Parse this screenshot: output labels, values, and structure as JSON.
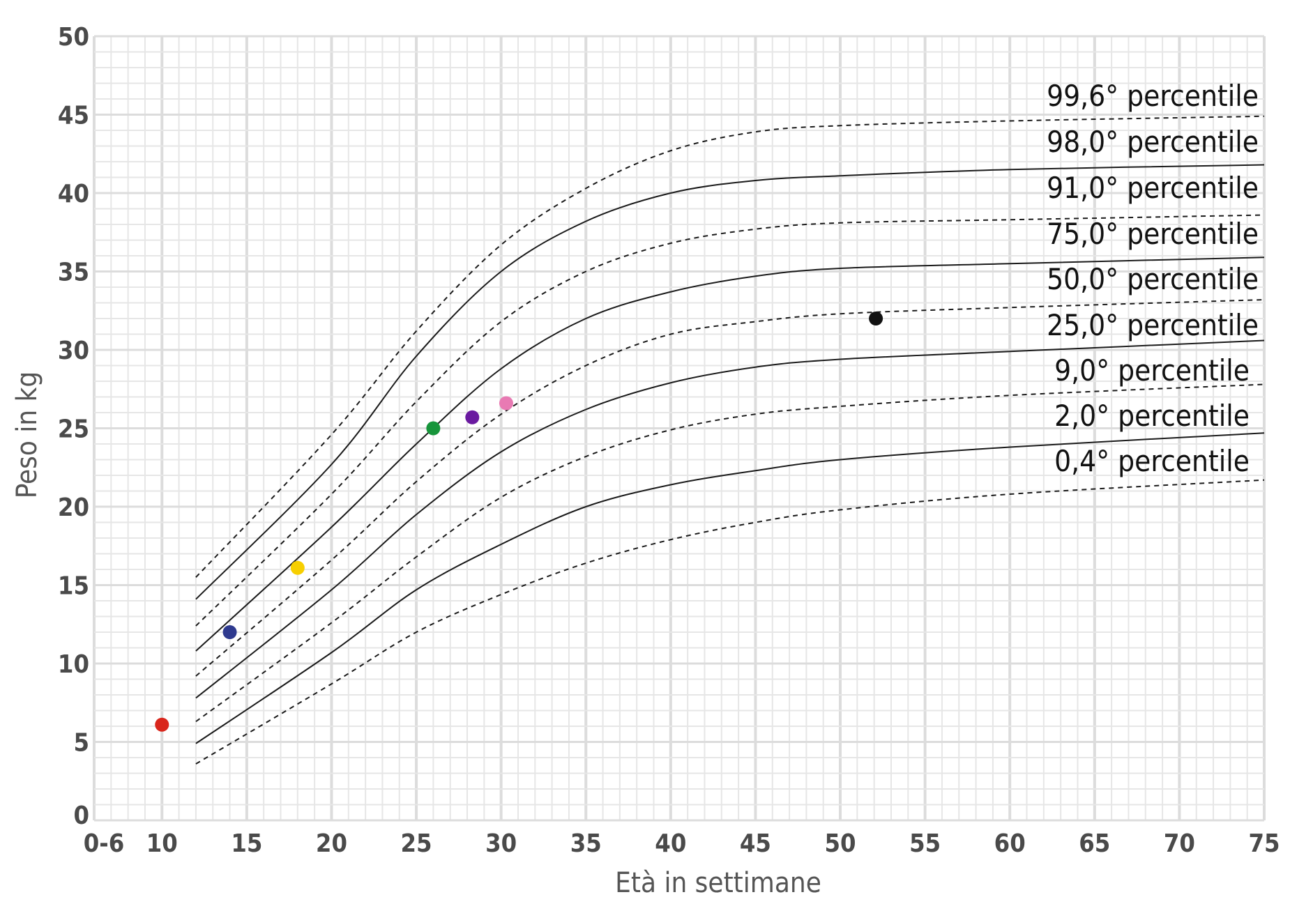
{
  "chart_data": {
    "type": "line",
    "title": "",
    "xlabel": "Età in settimane",
    "ylabel": "Peso in kg",
    "xlim": [
      6,
      75
    ],
    "ylim": [
      0,
      50
    ],
    "grid": true,
    "x_ticks": [
      {
        "value": 6,
        "label": "0-6"
      },
      {
        "value": 10,
        "label": "10"
      },
      {
        "value": 15,
        "label": "15"
      },
      {
        "value": 20,
        "label": "20"
      },
      {
        "value": 25,
        "label": "25"
      },
      {
        "value": 30,
        "label": "30"
      },
      {
        "value": 35,
        "label": "35"
      },
      {
        "value": 40,
        "label": "40"
      },
      {
        "value": 45,
        "label": "45"
      },
      {
        "value": 50,
        "label": "50"
      },
      {
        "value": 55,
        "label": "55"
      },
      {
        "value": 60,
        "label": "60"
      },
      {
        "value": 65,
        "label": "65"
      },
      {
        "value": 70,
        "label": "70"
      },
      {
        "value": 75,
        "label": "75"
      }
    ],
    "y_ticks": [
      "0",
      "5",
      "10",
      "15",
      "20",
      "25",
      "30",
      "35",
      "40",
      "45",
      "50"
    ],
    "x": [
      12,
      20,
      25,
      30,
      35,
      40,
      45,
      50,
      60,
      75
    ],
    "series": [
      {
        "name": "99,6° percentile",
        "style": "dashed",
        "values": [
          15.5,
          24.6,
          31.2,
          36.7,
          40.3,
          42.7,
          43.9,
          44.3,
          44.6,
          44.9
        ]
      },
      {
        "name": "98,0° percentile",
        "style": "solid",
        "values": [
          14.1,
          22.7,
          29.6,
          35.0,
          38.2,
          40.0,
          40.8,
          41.1,
          41.5,
          41.8
        ]
      },
      {
        "name": "91,0° percentile",
        "style": "dashed",
        "values": [
          12.4,
          20.8,
          26.7,
          31.8,
          35.0,
          36.8,
          37.7,
          38.1,
          38.3,
          38.6
        ]
      },
      {
        "name": "75,0° percentile",
        "style": "solid",
        "values": [
          10.8,
          18.7,
          24.0,
          28.8,
          32.0,
          33.7,
          34.7,
          35.2,
          35.5,
          35.9
        ]
      },
      {
        "name": "50,0° percentile",
        "style": "dashed",
        "values": [
          9.2,
          16.6,
          21.6,
          25.9,
          29.0,
          31.0,
          31.8,
          32.3,
          32.7,
          33.2
        ]
      },
      {
        "name": "25,0° percentile",
        "style": "solid",
        "values": [
          7.8,
          14.7,
          19.5,
          23.5,
          26.2,
          27.9,
          28.9,
          29.4,
          29.9,
          30.6
        ]
      },
      {
        "name": "9,0° percentile",
        "style": "dashed",
        "values": [
          6.3,
          12.6,
          16.8,
          20.6,
          23.2,
          24.9,
          25.9,
          26.4,
          27.1,
          27.8
        ]
      },
      {
        "name": "2,0° percentile",
        "style": "solid",
        "values": [
          4.9,
          10.7,
          14.7,
          17.6,
          20.0,
          21.4,
          22.3,
          23.0,
          23.8,
          24.7
        ]
      },
      {
        "name": "0,4° percentile",
        "style": "dashed",
        "values": [
          3.6,
          8.7,
          12.0,
          14.4,
          16.4,
          17.9,
          19.0,
          19.8,
          20.8,
          21.7
        ]
      }
    ],
    "points": [
      {
        "x": 10,
        "y": 6.1,
        "color": "#d9261c"
      },
      {
        "x": 14,
        "y": 12.0,
        "color": "#2e3a8f"
      },
      {
        "x": 18,
        "y": 16.1,
        "color": "#f7cf00"
      },
      {
        "x": 26,
        "y": 25.0,
        "color": "#17953b"
      },
      {
        "x": 28.3,
        "y": 25.7,
        "color": "#6a1aa0"
      },
      {
        "x": 30.3,
        "y": 26.6,
        "color": "#e87ab3"
      },
      {
        "x": 52.1,
        "y": 32.0,
        "color": "#111111"
      }
    ],
    "colors": {
      "grid_minor": "#e6e6e6",
      "grid_major": "#dcdcdc",
      "curve": "#1a1a1a",
      "tick_text": "#4a4a4a"
    }
  }
}
